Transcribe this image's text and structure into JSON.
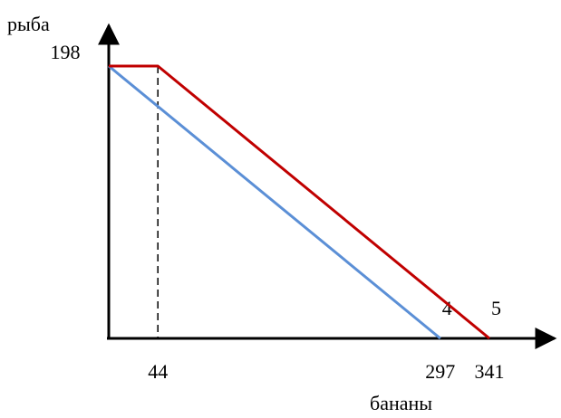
{
  "chart_data": {
    "type": "line",
    "ylabel": "рыба",
    "xlabel": "бананы",
    "y_ticks": [
      {
        "label": "198",
        "value": 198
      }
    ],
    "x_ticks": [
      {
        "label": "44",
        "value": 44
      },
      {
        "label": "297",
        "value": 297
      },
      {
        "label": "341",
        "value": 341
      }
    ],
    "guide_x": 44,
    "xlim": [
      0,
      375
    ],
    "ylim": [
      0,
      230
    ],
    "series": [
      {
        "name": "",
        "color": "#5b8fd6",
        "end_label": "4",
        "points": [
          [
            0,
            198
          ],
          [
            297,
            0
          ]
        ]
      },
      {
        "name": "",
        "color": "#c00000",
        "end_label": "5",
        "points": [
          [
            0,
            198
          ],
          [
            44,
            198
          ],
          [
            341,
            0
          ]
        ]
      }
    ]
  }
}
